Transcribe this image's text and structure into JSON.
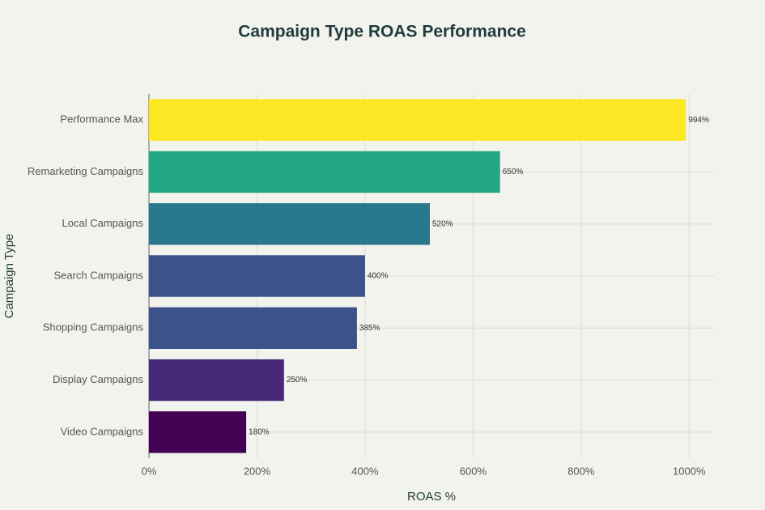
{
  "chart_data": {
    "type": "bar",
    "orientation": "horizontal",
    "title": "Campaign Type ROAS Performance",
    "x_label": "ROAS %",
    "y_label": "Campaign Type",
    "categories": [
      "Performance Max",
      "Remarketing Campaigns",
      "Local Campaigns",
      "Search Campaigns",
      "Shopping Campaigns",
      "Display Campaigns",
      "Video Campaigns"
    ],
    "values": [
      994,
      650,
      520,
      400,
      385,
      250,
      180
    ],
    "value_labels": [
      "994%",
      "650%",
      "520%",
      "400%",
      "385%",
      "250%",
      "180%"
    ],
    "colors": [
      "#fde725",
      "#22a884",
      "#2a788e",
      "#3b528b",
      "#3b528b",
      "#482878",
      "#440154"
    ],
    "xlim": [
      0,
      1046
    ],
    "xticks": [
      {
        "value": 0,
        "label": "0%"
      },
      {
        "value": 200,
        "label": "200%"
      },
      {
        "value": 400,
        "label": "400%"
      },
      {
        "value": 600,
        "label": "600%"
      },
      {
        "value": 800,
        "label": "800%"
      },
      {
        "value": 1000,
        "label": "1000%"
      }
    ],
    "grid": true
  }
}
